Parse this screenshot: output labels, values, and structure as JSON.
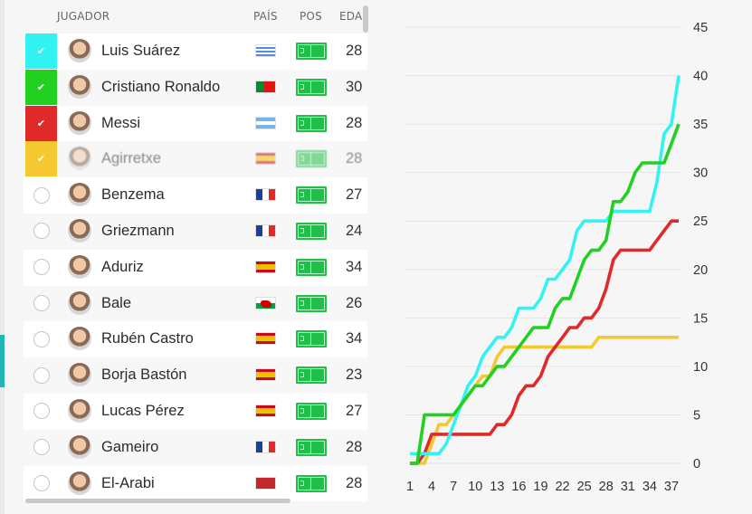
{
  "table": {
    "headers": {
      "player": "JUGADOR",
      "country": "PAÍS",
      "position": "POS",
      "age": "EDAI"
    },
    "rows": [
      {
        "name": "Luis Suárez",
        "country": "uruguay",
        "age": "28",
        "selected": true,
        "color": "#33f2f2"
      },
      {
        "name": "Cristiano Ronaldo",
        "country": "portugal",
        "age": "30",
        "selected": true,
        "color": "#22d022"
      },
      {
        "name": "Messi",
        "country": "argentina",
        "age": "28",
        "selected": true,
        "color": "#e02a2a"
      },
      {
        "name": "Agirretxe",
        "country": "spain",
        "age": "28",
        "selected": true,
        "color": "#f5c832",
        "blurred": true
      },
      {
        "name": "Benzema",
        "country": "france",
        "age": "27",
        "selected": false
      },
      {
        "name": "Griezmann",
        "country": "france",
        "age": "24",
        "selected": false
      },
      {
        "name": "Aduriz",
        "country": "spain",
        "age": "34",
        "selected": false
      },
      {
        "name": "Bale",
        "country": "wales",
        "age": "26",
        "selected": false
      },
      {
        "name": "Rubén Castro",
        "country": "spain",
        "age": "34",
        "selected": false
      },
      {
        "name": "Borja Bastón",
        "country": "spain",
        "age": "23",
        "selected": false
      },
      {
        "name": "Lucas Pérez",
        "country": "spain",
        "age": "27",
        "selected": false
      },
      {
        "name": "Gameiro",
        "country": "france",
        "age": "28",
        "selected": false
      },
      {
        "name": "El-Arabi",
        "country": "morocco",
        "age": "28",
        "selected": false
      }
    ],
    "check_glyph": "✔"
  },
  "chart_data": {
    "type": "line",
    "x": [
      1,
      2,
      3,
      4,
      5,
      6,
      7,
      8,
      9,
      10,
      11,
      12,
      13,
      14,
      15,
      16,
      17,
      18,
      19,
      20,
      21,
      22,
      23,
      24,
      25,
      26,
      27,
      28,
      29,
      30,
      31,
      32,
      33,
      34,
      35,
      36,
      37,
      38
    ],
    "xticks": [
      1,
      4,
      7,
      10,
      13,
      16,
      19,
      22,
      25,
      28,
      31,
      34,
      37
    ],
    "yticks": [
      0,
      5,
      10,
      15,
      20,
      25,
      30,
      35,
      40,
      45
    ],
    "ylim": [
      0,
      45
    ],
    "xlim": [
      1,
      38
    ],
    "grid": true,
    "y_axis_side": "right",
    "series": [
      {
        "color": "#f5c832",
        "values": [
          0,
          0,
          0,
          2,
          4,
          4,
          5,
          6,
          7,
          8,
          9,
          9,
          11,
          12,
          12,
          12,
          12,
          12,
          12,
          12,
          12,
          12,
          12,
          12,
          12,
          12,
          13,
          13,
          13,
          13,
          13,
          13,
          13,
          13,
          13,
          13,
          13,
          13
        ]
      },
      {
        "color": "#e02a2a",
        "values": [
          0,
          0,
          1,
          3,
          3,
          3,
          3,
          3,
          3,
          3,
          3,
          3,
          4,
          4,
          5,
          7,
          8,
          8,
          9,
          11,
          12,
          13,
          14,
          14,
          15,
          15,
          16,
          18,
          21,
          22,
          22,
          22,
          22,
          22,
          23,
          24,
          25,
          25
        ]
      },
      {
        "color": "#33f2f2",
        "values": [
          1,
          1,
          1,
          1,
          1,
          2,
          4,
          6,
          8,
          9,
          11,
          12,
          13,
          13,
          14,
          16,
          16,
          16,
          17,
          19,
          19,
          20,
          21,
          24,
          25,
          25,
          25,
          25,
          26,
          26,
          26,
          26,
          26,
          26,
          29,
          34,
          35,
          40
        ]
      },
      {
        "color": "#22d022",
        "values": [
          0,
          0,
          5,
          5,
          5,
          5,
          5,
          6,
          7,
          8,
          8,
          9,
          10,
          10,
          11,
          12,
          13,
          14,
          14,
          14,
          16,
          17,
          17,
          19,
          21,
          22,
          22,
          23,
          27,
          27,
          28,
          30,
          31,
          31,
          31,
          31,
          33,
          35
        ]
      }
    ]
  }
}
